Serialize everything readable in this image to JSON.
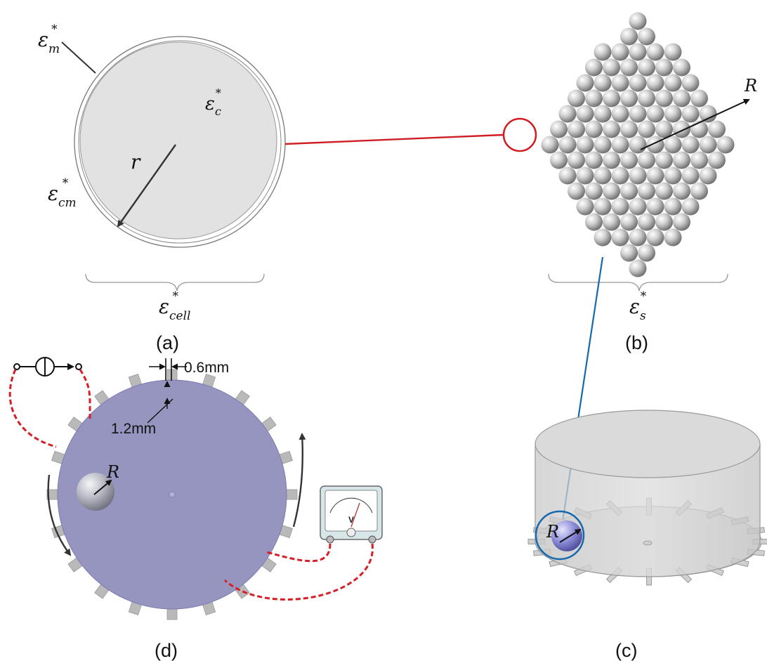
{
  "panels": {
    "a": {
      "label": "(a)"
    },
    "b": {
      "label": "(b)"
    },
    "c": {
      "label": "(c)"
    },
    "d": {
      "label": "(d)"
    }
  },
  "symbols": {
    "eps_m": {
      "base": "ε",
      "sub": "m",
      "sup": "*"
    },
    "eps_c": {
      "base": "ε",
      "sub": "c",
      "sup": "*"
    },
    "eps_cm": {
      "base": "ε",
      "sub": "cm",
      "sup": "*"
    },
    "eps_cell": {
      "base": "ε",
      "sub": "cell",
      "sup": "*"
    },
    "eps_s": {
      "base": "ε",
      "sub": "s",
      "sup": "*"
    },
    "r_radius": "r",
    "R_radius": "R"
  },
  "dimensions": {
    "electrode_width": "0.6mm",
    "electrode_gap": "1.2mm"
  },
  "colors": {
    "cell_fill": "#e2e2e2",
    "chip_disc": "#9595bf",
    "red_link": "#d01f24",
    "blue_link": "#1768ad",
    "wire_dashed": "#d61e26",
    "electrode": "#b9b9b9"
  },
  "icons": {
    "current_source": "current-source-icon",
    "voltmeter": "voltmeter-icon"
  }
}
